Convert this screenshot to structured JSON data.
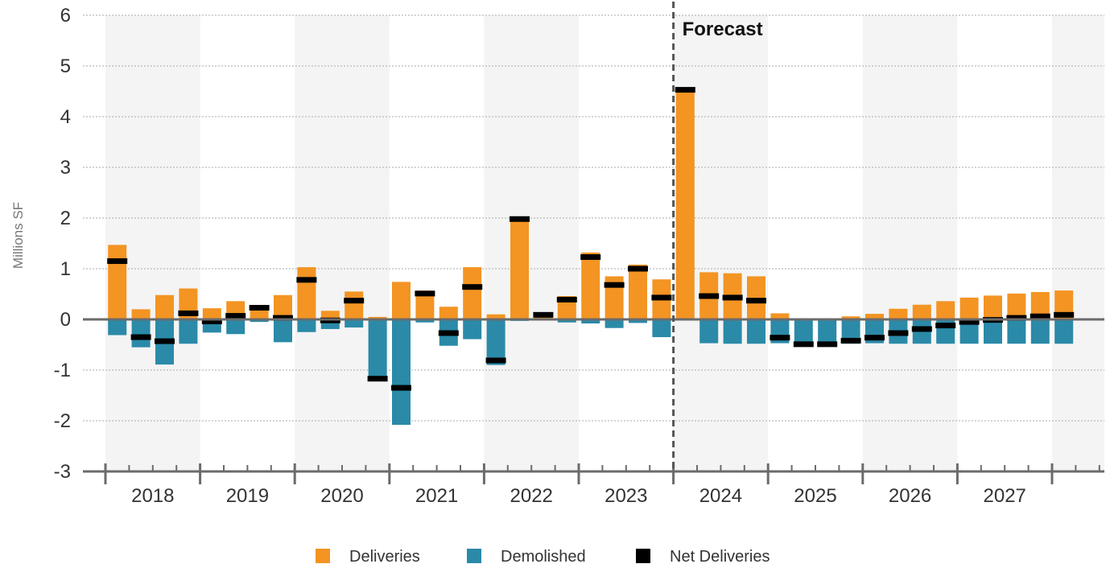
{
  "chart_data": {
    "type": "bar",
    "ylabel": "Millions SF",
    "xlabel": "",
    "ylim": [
      -3,
      6
    ],
    "yticks": [
      -3,
      -2,
      -1,
      0,
      1,
      2,
      3,
      4,
      5,
      6
    ],
    "grid": true,
    "legend_position": "bottom-center",
    "years": [
      "2018",
      "2019",
      "2020",
      "2021",
      "2022",
      "2023",
      "2024",
      "2025",
      "2026",
      "2027"
    ],
    "quarters_per_year": 4,
    "forecast_start_index": 24,
    "annotation": "Forecast",
    "series": [
      {
        "name": "Deliveries",
        "type": "bar",
        "color": "#f39423",
        "values": [
          1.47,
          0.2,
          0.48,
          0.61,
          0.22,
          0.36,
          0.28,
          0.48,
          1.03,
          0.17,
          0.55,
          0.05,
          0.74,
          0.57,
          0.25,
          1.03,
          0.1,
          1.99,
          0.12,
          0.46,
          1.32,
          0.85,
          1.08,
          0.79,
          4.53,
          0.93,
          0.91,
          0.85,
          0.12,
          0.0,
          0.0,
          0.06,
          0.11,
          0.21,
          0.29,
          0.36,
          0.43,
          0.47,
          0.51,
          0.54,
          0.57
        ]
      },
      {
        "name": "Demolished",
        "type": "bar",
        "color": "#2a8aa8",
        "values": [
          -0.31,
          -0.55,
          -0.89,
          -0.48,
          -0.26,
          -0.29,
          -0.05,
          -0.45,
          -0.25,
          -0.19,
          -0.16,
          -1.2,
          -2.08,
          -0.06,
          -0.52,
          -0.39,
          -0.9,
          -0.03,
          -0.02,
          -0.06,
          -0.08,
          -0.17,
          -0.07,
          -0.35,
          0.0,
          -0.47,
          -0.48,
          -0.48,
          -0.47,
          -0.49,
          -0.49,
          -0.48,
          -0.47,
          -0.48,
          -0.48,
          -0.48,
          -0.48,
          -0.48,
          -0.48,
          -0.48,
          -0.48
        ]
      },
      {
        "name": "Net Deliveries",
        "type": "marker",
        "color": "#000000",
        "values": [
          1.15,
          -0.35,
          -0.43,
          0.12,
          -0.04,
          0.07,
          0.23,
          0.03,
          0.78,
          -0.02,
          0.37,
          -1.17,
          -1.35,
          0.51,
          -0.27,
          0.64,
          -0.81,
          1.98,
          0.09,
          0.39,
          1.23,
          0.68,
          1.0,
          0.43,
          4.53,
          0.46,
          0.43,
          0.37,
          -0.36,
          -0.49,
          -0.49,
          -0.42,
          -0.36,
          -0.27,
          -0.19,
          -0.12,
          -0.05,
          -0.01,
          0.03,
          0.06,
          0.09
        ]
      }
    ]
  }
}
